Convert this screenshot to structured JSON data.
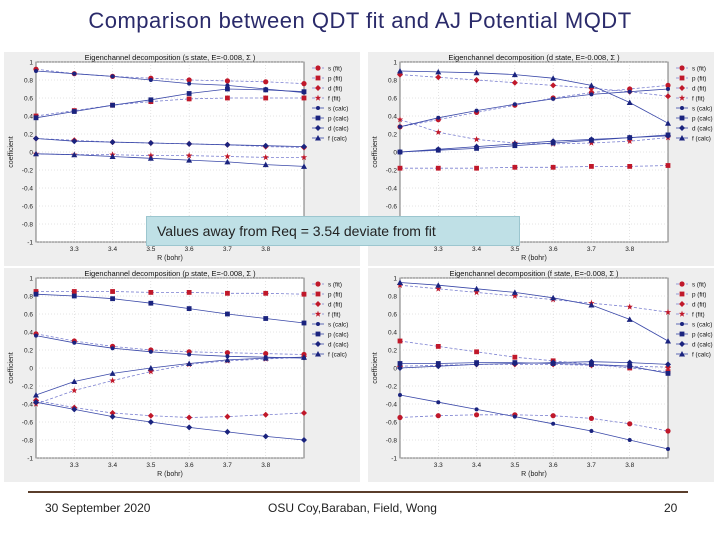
{
  "slide": {
    "title": "Comparison between QDT fit and AJ Potential MQDT",
    "callout": "Values away from Req = 3.54 deviate from fit"
  },
  "footer": {
    "date": "30 September 2020",
    "authors": "OSU Coy,Baraban, Field, Wong",
    "page": "20"
  },
  "legend_labels": [
    "s (fit)",
    "p (fit)",
    "d (fit)",
    "f (fit)",
    "s (calc)",
    "p (calc)",
    "d (calc)",
    "f (calc)"
  ],
  "series_colors": {
    "fit_marker": "#c0182a",
    "fit_line": "#7a7fd0",
    "calc_marker": "#1a237e",
    "calc_line": "#3a48a8"
  },
  "chart_data": [
    {
      "type": "line",
      "title": "Eigenchannel decomposition  (s state,  E=-0.008, Σ )",
      "xlabel": "R (bohr)",
      "ylabel": "coefficient",
      "xlim": [
        3.2,
        3.9
      ],
      "ylim": [
        -1,
        1
      ],
      "xticks": [
        "3.3",
        "3.4",
        "3.5",
        "3.6",
        "3.7",
        "3.8"
      ],
      "yticks": [
        "-1",
        "-0.8",
        "-0.6",
        "-0.4",
        "-0.2",
        "0",
        "0.2",
        "0.4",
        "0.6",
        "0.8",
        "1"
      ],
      "grid": true,
      "legend_position": "right",
      "x": [
        3.2,
        3.3,
        3.4,
        3.5,
        3.6,
        3.7,
        3.8,
        3.9
      ],
      "series": [
        {
          "name": "s (fit)",
          "values": [
            0.92,
            0.87,
            0.84,
            0.82,
            0.8,
            0.79,
            0.78,
            0.76
          ]
        },
        {
          "name": "p (fit)",
          "values": [
            0.4,
            0.46,
            0.52,
            0.56,
            0.59,
            0.6,
            0.6,
            0.6
          ]
        },
        {
          "name": "d (fit)",
          "values": [
            0.15,
            0.13,
            0.11,
            0.1,
            0.09,
            0.08,
            0.06,
            0.05
          ]
        },
        {
          "name": "f (fit)",
          "values": [
            -0.02,
            -0.03,
            -0.03,
            -0.04,
            -0.04,
            -0.05,
            -0.06,
            -0.06
          ]
        },
        {
          "name": "s (calc)",
          "values": [
            0.9,
            0.87,
            0.84,
            0.8,
            0.76,
            0.74,
            0.7,
            0.66
          ]
        },
        {
          "name": "p (calc)",
          "values": [
            0.38,
            0.45,
            0.52,
            0.58,
            0.65,
            0.7,
            0.69,
            0.67
          ]
        },
        {
          "name": "d (calc)",
          "values": [
            0.15,
            0.12,
            0.11,
            0.1,
            0.09,
            0.08,
            0.07,
            0.06
          ]
        },
        {
          "name": "f (calc)",
          "values": [
            -0.02,
            -0.03,
            -0.05,
            -0.07,
            -0.09,
            -0.11,
            -0.14,
            -0.16
          ]
        }
      ]
    },
    {
      "type": "line",
      "title": "Eigenchannel decomposition  (d state,  E=-0.008, Σ )",
      "xlabel": "R (bohr)",
      "ylabel": "coefficient",
      "xlim": [
        3.2,
        3.9
      ],
      "ylim": [
        -1,
        1
      ],
      "xticks": [
        "3.3",
        "3.4",
        "3.5",
        "3.6",
        "3.7",
        "3.8"
      ],
      "yticks": [
        "-1",
        "-0.8",
        "-0.6",
        "-0.4",
        "-0.2",
        "0",
        "0.2",
        "0.4",
        "0.6",
        "0.8",
        "1"
      ],
      "grid": true,
      "legend_position": "right",
      "x": [
        3.2,
        3.3,
        3.4,
        3.5,
        3.6,
        3.7,
        3.8,
        3.9
      ],
      "series": [
        {
          "name": "s (fit)",
          "values": [
            0.28,
            0.36,
            0.44,
            0.52,
            0.6,
            0.66,
            0.7,
            0.74
          ]
        },
        {
          "name": "p (fit)",
          "values": [
            -0.18,
            -0.18,
            -0.18,
            -0.17,
            -0.17,
            -0.16,
            -0.16,
            -0.15
          ]
        },
        {
          "name": "d (fit)",
          "values": [
            0.86,
            0.83,
            0.8,
            0.77,
            0.74,
            0.71,
            0.67,
            0.62
          ]
        },
        {
          "name": "f (fit)",
          "values": [
            0.36,
            0.22,
            0.14,
            0.1,
            0.09,
            0.1,
            0.12,
            0.16
          ]
        },
        {
          "name": "s (calc)",
          "values": [
            0.28,
            0.38,
            0.46,
            0.53,
            0.59,
            0.64,
            0.67,
            0.7
          ]
        },
        {
          "name": "p (calc)",
          "values": [
            0.0,
            0.02,
            0.04,
            0.07,
            0.1,
            0.13,
            0.16,
            0.19
          ]
        },
        {
          "name": "d (calc)",
          "values": [
            0.0,
            0.03,
            0.06,
            0.09,
            0.12,
            0.14,
            0.16,
            0.18
          ]
        },
        {
          "name": "f (calc)",
          "values": [
            0.9,
            0.89,
            0.88,
            0.86,
            0.82,
            0.74,
            0.55,
            0.32
          ]
        }
      ]
    },
    {
      "type": "line",
      "title": "Eigenchannel decomposition  (p state,  E=-0.008, Σ )",
      "xlabel": "R (bohr)",
      "ylabel": "coefficient",
      "xlim": [
        3.2,
        3.9
      ],
      "ylim": [
        -1,
        1
      ],
      "xticks": [
        "3.3",
        "3.4",
        "3.5",
        "3.6",
        "3.7",
        "3.8"
      ],
      "yticks": [
        "-1",
        "-0.8",
        "-0.6",
        "-0.4",
        "-0.2",
        "0",
        "0.2",
        "0.4",
        "0.6",
        "0.8",
        "1"
      ],
      "grid": true,
      "legend_position": "right",
      "x": [
        3.2,
        3.3,
        3.4,
        3.5,
        3.6,
        3.7,
        3.8,
        3.9
      ],
      "series": [
        {
          "name": "s (fit)",
          "values": [
            0.38,
            0.3,
            0.24,
            0.2,
            0.18,
            0.17,
            0.16,
            0.15
          ]
        },
        {
          "name": "p (fit)",
          "values": [
            0.85,
            0.85,
            0.85,
            0.84,
            0.84,
            0.83,
            0.83,
            0.82
          ]
        },
        {
          "name": "d (fit)",
          "values": [
            -0.36,
            -0.44,
            -0.5,
            -0.53,
            -0.55,
            -0.54,
            -0.52,
            -0.5
          ]
        },
        {
          "name": "f (fit)",
          "values": [
            -0.4,
            -0.25,
            -0.14,
            -0.04,
            0.04,
            0.08,
            0.1,
            0.12
          ]
        },
        {
          "name": "s (calc)",
          "values": [
            0.36,
            0.28,
            0.22,
            0.18,
            0.15,
            0.13,
            0.12,
            0.11
          ]
        },
        {
          "name": "p (calc)",
          "values": [
            0.82,
            0.8,
            0.77,
            0.72,
            0.66,
            0.6,
            0.55,
            0.5
          ]
        },
        {
          "name": "d (calc)",
          "values": [
            -0.38,
            -0.46,
            -0.54,
            -0.6,
            -0.66,
            -0.71,
            -0.76,
            -0.8
          ]
        },
        {
          "name": "f (calc)",
          "values": [
            -0.3,
            -0.15,
            -0.06,
            0.0,
            0.05,
            0.09,
            0.11,
            0.12
          ]
        }
      ]
    },
    {
      "type": "line",
      "title": "Eigenchannel decomposition  (f state,  E=-0.008, Σ )",
      "xlabel": "R (bohr)",
      "ylabel": "coefficient",
      "xlim": [
        3.2,
        3.9
      ],
      "ylim": [
        -1,
        1
      ],
      "xticks": [
        "3.3",
        "3.4",
        "3.5",
        "3.6",
        "3.7",
        "3.8"
      ],
      "yticks": [
        "-1",
        "-0.8",
        "-0.6",
        "-0.4",
        "-0.2",
        "0",
        "0.2",
        "0.4",
        "0.6",
        "0.8",
        "1"
      ],
      "grid": true,
      "legend_position": "right",
      "x": [
        3.2,
        3.3,
        3.4,
        3.5,
        3.6,
        3.7,
        3.8,
        3.9
      ],
      "series": [
        {
          "name": "s (fit)",
          "values": [
            -0.55,
            -0.53,
            -0.52,
            -0.52,
            -0.53,
            -0.56,
            -0.62,
            -0.7
          ]
        },
        {
          "name": "p (fit)",
          "values": [
            0.3,
            0.24,
            0.18,
            0.12,
            0.08,
            0.04,
            0.0,
            -0.04
          ]
        },
        {
          "name": "d (fit)",
          "values": [
            0.02,
            0.03,
            0.04,
            0.04,
            0.04,
            0.03,
            0.02,
            0.01
          ]
        },
        {
          "name": "f (fit)",
          "values": [
            0.92,
            0.88,
            0.84,
            0.8,
            0.76,
            0.72,
            0.68,
            0.62
          ]
        },
        {
          "name": "s (calc)",
          "values": [
            -0.3,
            -0.38,
            -0.46,
            -0.54,
            -0.62,
            -0.7,
            -0.8,
            -0.9
          ]
        },
        {
          "name": "p (calc)",
          "values": [
            0.05,
            0.05,
            0.06,
            0.06,
            0.05,
            0.04,
            0.02,
            -0.06
          ]
        },
        {
          "name": "d (calc)",
          "values": [
            0.0,
            0.02,
            0.04,
            0.05,
            0.06,
            0.07,
            0.06,
            0.04
          ]
        },
        {
          "name": "f (calc)",
          "values": [
            0.95,
            0.92,
            0.88,
            0.84,
            0.78,
            0.7,
            0.54,
            0.3
          ]
        }
      ]
    }
  ]
}
